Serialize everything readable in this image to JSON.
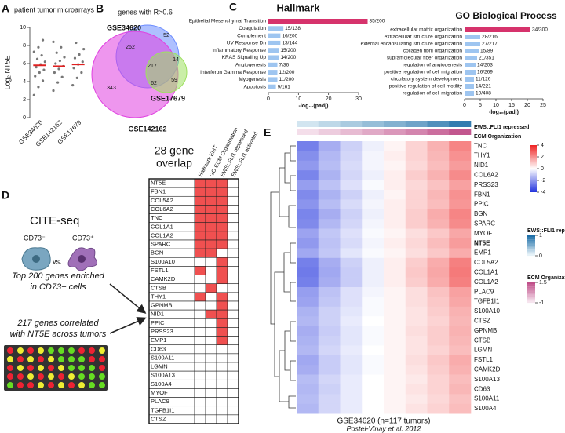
{
  "panel_labels": [
    "A",
    "B",
    "C",
    "D",
    "E"
  ],
  "chart_data": [
    {
      "type": "strip",
      "title": "patient tumor microarrays",
      "ylabel": "Log₂ NT5E",
      "categories": [
        "GSE34620",
        "GSE142162",
        "GSE17679"
      ],
      "values": [
        [
          2.5,
          3.4,
          4.1,
          4.6,
          5.0,
          5.3,
          5.6,
          5.9,
          6.2,
          6.5,
          6.9,
          7.3,
          7.8,
          8.6
        ],
        [
          3.0,
          3.9,
          4.5,
          5.0,
          5.4,
          5.7,
          6.0,
          6.3,
          6.7,
          7.2,
          7.8,
          8.4
        ],
        [
          3.6,
          4.4,
          5.0,
          5.5,
          5.9,
          6.2,
          6.6,
          7.0,
          7.6,
          8.3
        ]
      ],
      "medians": [
        5.8,
        5.7,
        5.9
      ],
      "color": "#777777",
      "median_color": "#e02020",
      "ylim": [
        0,
        10
      ],
      "yticks": [
        0,
        2,
        4,
        6,
        8,
        10
      ]
    },
    {
      "type": "barh",
      "title": "Hallmark",
      "categories": [
        "Epithelial Mesenchymal Transition",
        "Coagulation",
        "Complement",
        "UV Response Dn",
        "Inflammatory Response",
        "KRAS Signaling Up",
        "Angiogenesis",
        "Interferon Gamma Response",
        "Myogenesis",
        "Apoptosis"
      ],
      "values": [
        33,
        5,
        4,
        4,
        3.5,
        3.5,
        3,
        3,
        3,
        2.5
      ],
      "bar_labels": [
        "35/200",
        "15/138",
        "16/200",
        "13/144",
        "15/200",
        "14/200",
        "7/36",
        "12/200",
        "11/200",
        "9/161"
      ],
      "colors": [
        "#d6336c",
        "#9ec5f0",
        "#9ec5f0",
        "#9ec5f0",
        "#9ec5f0",
        "#9ec5f0",
        "#9ec5f0",
        "#9ec5f0",
        "#9ec5f0",
        "#9ec5f0"
      ],
      "xlabel": "-log₁₀(padj)",
      "xlim": [
        0,
        30
      ],
      "xticks": [
        0,
        10,
        20,
        30
      ]
    },
    {
      "type": "barh",
      "title": "GO Biological Process",
      "categories": [
        "extracellular matrix organization",
        "extracellular structure organization",
        "external encapsulating structure organization",
        "collagen fibril organization",
        "supramolecular fiber organization",
        "regulation of angiogenesis",
        "positive regulation of cell migration",
        "circulatory system development",
        "positive regulation of cell motility",
        "regulation of cell migration"
      ],
      "values": [
        21,
        5,
        5,
        4.5,
        4,
        3.5,
        3.5,
        3,
        3,
        3
      ],
      "bar_labels": [
        "34/300",
        "28/216",
        "27/217",
        "15/89",
        "21/351",
        "14/203",
        "16/269",
        "11/126",
        "14/221",
        "19/408"
      ],
      "colors": [
        "#d6336c",
        "#9ec5f0",
        "#9ec5f0",
        "#9ec5f0",
        "#9ec5f0",
        "#9ec5f0",
        "#9ec5f0",
        "#9ec5f0",
        "#9ec5f0",
        "#9ec5f0"
      ],
      "xlabel": "-log₁₀(padj)",
      "xlim": [
        0,
        25
      ],
      "xticks": [
        0,
        5,
        10,
        15,
        20,
        25
      ]
    },
    {
      "type": "heatmap",
      "rows": [
        "TNC",
        "THY1",
        "NID1",
        "COL6A2",
        "PRSS23",
        "FBN1",
        "PPIC",
        "BGN",
        "SPARC",
        "MYOF",
        "NT5E",
        "EMP1",
        "COL5A2",
        "COL1A1",
        "COL1A2",
        "PLAC9",
        "TGFB1I1",
        "S100A10",
        "CTSZ",
        "GPNMB",
        "CTSB",
        "LGMN",
        "FSTL1",
        "CAMK2D",
        "S100A13",
        "CD63",
        "S100A11",
        "S100A4"
      ],
      "highlight_rows": [
        10
      ],
      "highlight_color": "#e02020",
      "values": [
        [
          -2.5,
          -1.6,
          -0.9,
          -0.3,
          0.2,
          0.8,
          1.4,
          2.2
        ],
        [
          -2.2,
          -1.4,
          -0.8,
          -0.2,
          0.3,
          0.8,
          1.3,
          2.0
        ],
        [
          -2.0,
          -1.3,
          -0.7,
          -0.2,
          0.2,
          0.7,
          1.2,
          1.8
        ],
        [
          -2.4,
          -1.5,
          -0.8,
          -0.3,
          0.3,
          0.9,
          1.4,
          2.1
        ],
        [
          -1.9,
          -1.2,
          -0.6,
          -0.1,
          0.3,
          0.7,
          1.1,
          1.7
        ],
        [
          -2.3,
          -1.5,
          -0.9,
          -0.3,
          0.2,
          0.8,
          1.3,
          2.0
        ],
        [
          -2.1,
          -1.3,
          -0.7,
          -0.2,
          0.3,
          0.8,
          1.2,
          1.9
        ],
        [
          -2.4,
          -1.6,
          -0.9,
          -0.3,
          0.3,
          0.9,
          1.5,
          2.2
        ],
        [
          -2.3,
          -1.4,
          -0.8,
          -0.2,
          0.3,
          0.9,
          1.4,
          2.1
        ],
        [
          -1.8,
          -1.1,
          -0.6,
          -0.1,
          0.2,
          0.6,
          1.0,
          1.6
        ],
        [
          -2.0,
          -1.2,
          -0.7,
          -0.2,
          0.3,
          0.7,
          1.2,
          1.8
        ],
        [
          -1.7,
          -1.1,
          -0.5,
          -0.1,
          0.2,
          0.6,
          1.0,
          1.5
        ],
        [
          -2.5,
          -1.6,
          -0.9,
          -0.3,
          0.3,
          0.9,
          1.5,
          2.3
        ],
        [
          -2.6,
          -1.7,
          -1.0,
          -0.3,
          0.3,
          1.0,
          1.6,
          2.4
        ],
        [
          -2.5,
          -1.6,
          -1.0,
          -0.3,
          0.3,
          0.9,
          1.5,
          2.3
        ],
        [
          -1.9,
          -1.2,
          -0.6,
          -0.2,
          0.2,
          0.6,
          1.1,
          1.7
        ],
        [
          -1.8,
          -1.1,
          -0.6,
          -0.1,
          0.2,
          0.6,
          1.0,
          1.6
        ],
        [
          -1.5,
          -0.9,
          -0.5,
          -0.1,
          0.2,
          0.5,
          0.9,
          1.4
        ],
        [
          -1.4,
          -0.9,
          -0.4,
          0.0,
          0.2,
          0.5,
          0.8,
          1.3
        ],
        [
          -1.6,
          -1.0,
          -0.5,
          -0.1,
          0.2,
          0.6,
          0.9,
          1.4
        ],
        [
          -1.5,
          -0.9,
          -0.5,
          -0.1,
          0.2,
          0.5,
          0.9,
          1.3
        ],
        [
          -1.4,
          -0.8,
          -0.4,
          0.0,
          0.2,
          0.5,
          0.8,
          1.2
        ],
        [
          -1.7,
          -1.0,
          -0.5,
          -0.1,
          0.2,
          0.6,
          1.0,
          1.5
        ],
        [
          -1.6,
          -1.0,
          -0.5,
          -0.1,
          0.2,
          0.5,
          0.9,
          1.4
        ],
        [
          -1.3,
          -0.8,
          -0.4,
          0.0,
          0.2,
          0.4,
          0.8,
          1.2
        ],
        [
          -1.4,
          -0.9,
          -0.4,
          0.0,
          0.2,
          0.5,
          0.8,
          1.3
        ],
        [
          -1.3,
          -0.8,
          -0.4,
          0.0,
          0.2,
          0.4,
          0.7,
          1.1
        ],
        [
          -1.4,
          -0.8,
          -0.4,
          0.0,
          0.2,
          0.5,
          0.8,
          1.2
        ]
      ],
      "zlim": [
        -4,
        4
      ],
      "zticks": [
        4,
        2,
        0,
        -2,
        -4
      ],
      "tracks": [
        {
          "name": "EWS::FLI1 repressed",
          "values": [
            0.1,
            0.2,
            0.3,
            0.4,
            0.5,
            0.6,
            0.75,
            0.9
          ],
          "lim": [
            0,
            1
          ],
          "ticks": [
            1,
            0
          ],
          "colors": [
            "#e6f2f8",
            "#1f6fa8"
          ]
        },
        {
          "name": "ECM Organization",
          "values": [
            -0.9,
            -0.6,
            -0.3,
            0.0,
            0.3,
            0.6,
            1.0,
            1.4
          ],
          "lim": [
            -1,
            1.5
          ],
          "ticks": [
            1.5,
            -1
          ],
          "colors": [
            "#f6e4ee",
            "#c0508a"
          ]
        }
      ],
      "caption": "GSE34620 (n=117 tumors)",
      "citation": "Postel-Vinay et al. 2012"
    }
  ],
  "venn": {
    "title": "genes with R>0.6",
    "sets": [
      {
        "name": "GSE34620",
        "color": "#6b8cff",
        "label_color": "#2fbdb6"
      },
      {
        "name": "GSE142162",
        "color": "#e040e0",
        "label_color": "#c030b0"
      },
      {
        "name": "GSE17679",
        "color": "#9ee060",
        "label_color": "#6cc040"
      }
    ],
    "counts": [
      262,
      52,
      14,
      217,
      343,
      62,
      59
    ]
  },
  "panel_d": {
    "method": "CITE-seq",
    "neg": "CD73⁻",
    "vs": "vs.",
    "pos": "CD73⁺",
    "text1": [
      "Top 200 genes enriched",
      "in CD73+ cells"
    ],
    "text2": [
      "217 genes correlated",
      "with NT5E across tumors"
    ],
    "table": {
      "title": [
        "28 gene",
        "overlap"
      ],
      "columns": [
        "Hallmark EMT",
        "GO ECM Organization",
        "EWS::FLI1 repressed",
        "EWS::FLI1 activated"
      ],
      "genes": [
        "NT5E",
        "FBN1",
        "COL5A2",
        "COL6A2",
        "TNC",
        "COL1A1",
        "COL1A2",
        "SPARC",
        "BGN",
        "S100A10",
        "FSTL1",
        "CAMK2D",
        "CTSB",
        "THY1",
        "GPNMB",
        "NID1",
        "PPIC",
        "PRSS23",
        "EMP1",
        "CD63",
        "S100A11",
        "LGMN",
        "S100A13",
        "S100A4",
        "MYOF",
        "PLAC9",
        "TGFB1I1",
        "CTSZ"
      ],
      "membership": [
        [
          1,
          1,
          1,
          0
        ],
        [
          1,
          1,
          1,
          0
        ],
        [
          1,
          1,
          1,
          0
        ],
        [
          1,
          1,
          1,
          0
        ],
        [
          1,
          1,
          1,
          0
        ],
        [
          1,
          1,
          1,
          0
        ],
        [
          1,
          1,
          1,
          0
        ],
        [
          1,
          1,
          1,
          0
        ],
        [
          1,
          1,
          0,
          0
        ],
        [
          0,
          0,
          1,
          0
        ],
        [
          1,
          0,
          1,
          0
        ],
        [
          0,
          0,
          1,
          0
        ],
        [
          0,
          1,
          0,
          0
        ],
        [
          1,
          0,
          1,
          0
        ],
        [
          0,
          0,
          1,
          0
        ],
        [
          0,
          1,
          1,
          0
        ],
        [
          0,
          0,
          1,
          0
        ],
        [
          0,
          0,
          1,
          0
        ],
        [
          0,
          0,
          1,
          0
        ],
        [
          0,
          0,
          0,
          0
        ],
        [
          0,
          0,
          0,
          0
        ],
        [
          0,
          0,
          0,
          0
        ],
        [
          0,
          0,
          0,
          0
        ],
        [
          0,
          0,
          0,
          0
        ],
        [
          0,
          0,
          0,
          0
        ],
        [
          0,
          0,
          0,
          0
        ],
        [
          0,
          0,
          0,
          0
        ],
        [
          0,
          0,
          0,
          0
        ]
      ],
      "fill_color": "#f05050"
    }
  }
}
